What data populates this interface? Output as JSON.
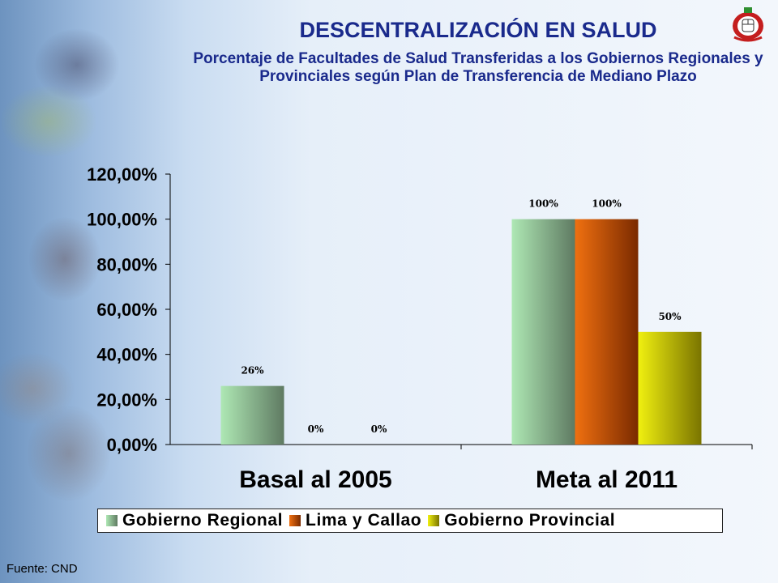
{
  "page": {
    "title": "DESCENTRALIZACIÓN EN SALUD",
    "subtitle": "Porcentaje de Facultades de Salud Transferidas a los Gobiernos Regionales y Provinciales según Plan de Transferencia de Mediano Plazo",
    "source": "Fuente: CND"
  },
  "chart_data": {
    "type": "bar",
    "categories": [
      "Basal al 2005",
      "Meta al 2011"
    ],
    "series": [
      {
        "name": "Gobierno Regional",
        "values": [
          26,
          100
        ],
        "labels": [
          "26%",
          "100%"
        ],
        "color": "#aee8b4"
      },
      {
        "name": "Lima y Callao",
        "values": [
          0,
          100
        ],
        "labels": [
          "0%",
          "100%"
        ],
        "color": "#f07010"
      },
      {
        "name": "Gobierno Provincial",
        "values": [
          0,
          50
        ],
        "labels": [
          "0%",
          "50%"
        ],
        "color": "#f0f010"
      }
    ],
    "ylim": [
      0,
      120
    ],
    "yticks": [
      0,
      20,
      40,
      60,
      80,
      100,
      120
    ],
    "ytick_labels": [
      "0,00%",
      "20,00%",
      "40,00%",
      "60,00%",
      "80,00%",
      "100,00%",
      "120,00%"
    ],
    "grid": false,
    "legend": "bottom"
  }
}
